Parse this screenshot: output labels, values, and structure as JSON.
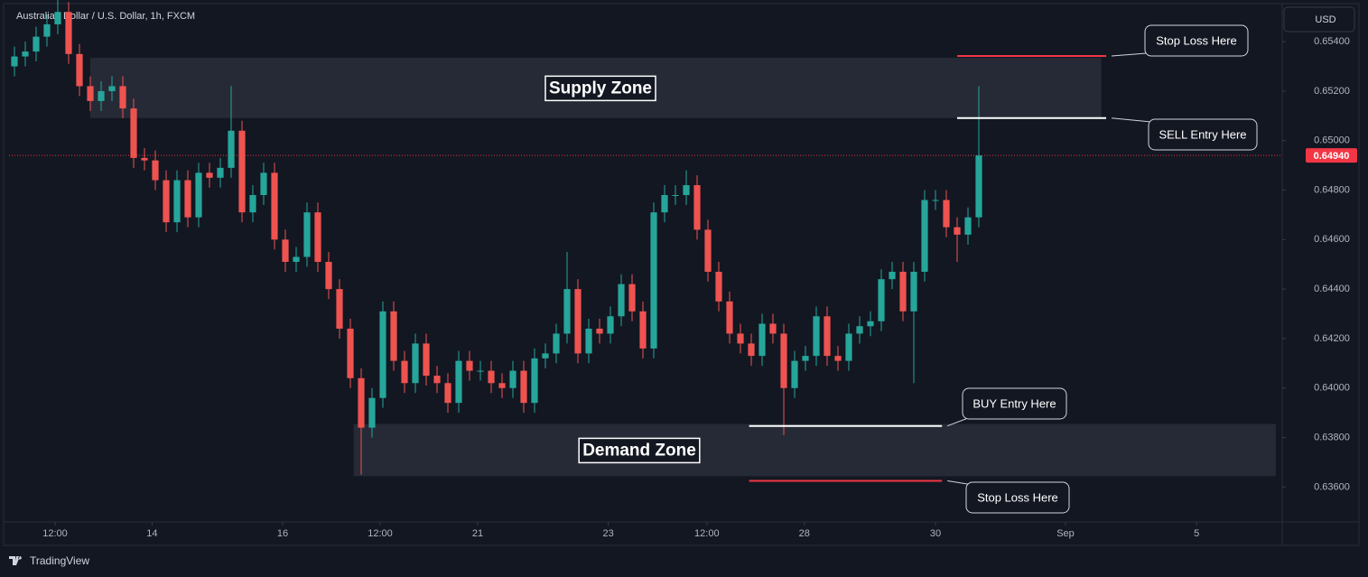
{
  "chart_data": {
    "type": "candlestick",
    "title": "Australian Dollar / U.S. Dollar, 1h, FXCM",
    "currency_button": "USD",
    "brand": "TradingView",
    "ylim": [
      0.6347,
      0.6555
    ],
    "xlim": [
      0,
      117.5
    ],
    "grid": false,
    "yticks": [
      {
        "value": 0.654,
        "label": "0.65400"
      },
      {
        "value": 0.652,
        "label": "0.65200"
      },
      {
        "value": 0.65,
        "label": "0.65000"
      },
      {
        "value": 0.648,
        "label": "0.64800"
      },
      {
        "value": 0.646,
        "label": "0.64600"
      },
      {
        "value": 0.644,
        "label": "0.64400"
      },
      {
        "value": 0.642,
        "label": "0.64200"
      },
      {
        "value": 0.64,
        "label": "0.64000"
      },
      {
        "value": 0.638,
        "label": "0.63800"
      },
      {
        "value": 0.636,
        "label": "0.63600"
      }
    ],
    "xticks": [
      {
        "value": 4.25,
        "label": "12:00"
      },
      {
        "value": 13.2,
        "label": "14"
      },
      {
        "value": 25.25,
        "label": "16"
      },
      {
        "value": 34.25,
        "label": "12:00"
      },
      {
        "value": 43.25,
        "label": "21"
      },
      {
        "value": 55.3,
        "label": "23"
      },
      {
        "value": 64.4,
        "label": "12:00"
      },
      {
        "value": 73.4,
        "label": "28"
      },
      {
        "value": 85.5,
        "label": "30"
      },
      {
        "value": 97.5,
        "label": "Sep"
      },
      {
        "value": 109.6,
        "label": "5"
      }
    ],
    "candles": {
      "up_color": "#26a69a",
      "down_color": "#ef5350",
      "x": [
        0.5,
        1.5,
        2.5,
        3.5,
        4.5,
        5.5,
        6.5,
        7.5,
        8.5,
        9.5,
        10.5,
        11.5,
        12.5,
        13.5,
        14.5,
        15.5,
        16.5,
        17.5,
        18.5,
        19.5,
        20.5,
        21.5,
        22.5,
        23.5,
        24.5,
        25.5,
        26.5,
        27.5,
        28.5,
        29.5,
        30.5,
        31.5,
        32.5,
        33.5,
        34.5,
        35.5,
        36.5,
        37.5,
        38.5,
        39.5,
        40.5,
        41.5,
        42.5,
        43.5,
        44.5,
        45.5,
        46.5,
        47.5,
        48.5,
        49.5,
        50.5,
        51.5,
        52.5,
        53.5,
        54.5,
        55.5,
        56.5,
        57.5,
        58.5,
        59.5,
        60.5,
        61.5,
        62.5,
        63.5,
        64.5,
        65.5,
        66.5,
        67.5,
        68.5,
        69.5,
        70.5,
        71.5,
        72.5,
        73.5,
        74.5,
        75.5,
        76.5,
        77.5,
        78.5,
        79.5,
        80.5,
        81.5,
        82.5,
        83.5,
        84.5,
        85.5,
        86.5,
        87.5,
        88.5,
        89.5
      ],
      "open": [
        0.653,
        0.6534,
        0.6536,
        0.6542,
        0.6547,
        0.6552,
        0.6535,
        0.6522,
        0.6516,
        0.652,
        0.6522,
        0.6513,
        0.6493,
        0.6492,
        0.6484,
        0.6467,
        0.6484,
        0.6469,
        0.6487,
        0.6485,
        0.6489,
        0.6504,
        0.6471,
        0.6478,
        0.6487,
        0.646,
        0.6451,
        0.6453,
        0.6471,
        0.6451,
        0.644,
        0.6424,
        0.6404,
        0.6384,
        0.6396,
        0.6431,
        0.6411,
        0.6402,
        0.6418,
        0.6405,
        0.6402,
        0.6394,
        0.6411,
        0.6407,
        0.6407,
        0.6402,
        0.64,
        0.6407,
        0.6394,
        0.6412,
        0.6414,
        0.6422,
        0.644,
        0.6414,
        0.6424,
        0.6422,
        0.6429,
        0.6442,
        0.6431,
        0.6416,
        0.6471,
        0.6478,
        0.6478,
        0.6482,
        0.6464,
        0.6447,
        0.6435,
        0.6422,
        0.6418,
        0.6413,
        0.6426,
        0.6422,
        0.64,
        0.6411,
        0.6413,
        0.6429,
        0.6413,
        0.6411,
        0.6422,
        0.6425,
        0.6427,
        0.6444,
        0.6447,
        0.6431,
        0.6447,
        0.6476,
        0.6476,
        0.6465,
        0.6462,
        0.6469
      ],
      "high": [
        0.6538,
        0.654,
        0.6546,
        0.6551,
        0.6563,
        0.6556,
        0.6539,
        0.6526,
        0.6524,
        0.6526,
        0.6526,
        0.6517,
        0.6497,
        0.6496,
        0.6488,
        0.6488,
        0.6488,
        0.6491,
        0.6491,
        0.6493,
        0.6522,
        0.6508,
        0.6482,
        0.6491,
        0.6491,
        0.6464,
        0.6457,
        0.6475,
        0.6475,
        0.6455,
        0.6444,
        0.6428,
        0.6408,
        0.64,
        0.6435,
        0.6435,
        0.6415,
        0.6422,
        0.6422,
        0.6409,
        0.6406,
        0.6415,
        0.6415,
        0.6411,
        0.6411,
        0.6406,
        0.6411,
        0.6411,
        0.6416,
        0.6418,
        0.6426,
        0.6455,
        0.6444,
        0.6428,
        0.6428,
        0.6433,
        0.6446,
        0.6446,
        0.6435,
        0.6475,
        0.6482,
        0.6482,
        0.6488,
        0.6486,
        0.6468,
        0.6451,
        0.6439,
        0.6426,
        0.6422,
        0.643,
        0.643,
        0.6426,
        0.6415,
        0.6417,
        0.6433,
        0.6433,
        0.6417,
        0.6426,
        0.6429,
        0.6431,
        0.6448,
        0.6451,
        0.6451,
        0.6451,
        0.648,
        0.648,
        0.648,
        0.6469,
        0.6473,
        0.6522
      ],
      "low": [
        0.6526,
        0.653,
        0.6532,
        0.6538,
        0.6543,
        0.6531,
        0.6518,
        0.6512,
        0.6512,
        0.6516,
        0.6509,
        0.6489,
        0.6488,
        0.648,
        0.6463,
        0.6463,
        0.6465,
        0.6465,
        0.6481,
        0.6481,
        0.6485,
        0.6467,
        0.6467,
        0.6474,
        0.6456,
        0.6447,
        0.6447,
        0.6449,
        0.6447,
        0.6436,
        0.642,
        0.64,
        0.6365,
        0.638,
        0.6392,
        0.6407,
        0.6398,
        0.6398,
        0.6401,
        0.6398,
        0.639,
        0.639,
        0.6403,
        0.6403,
        0.6398,
        0.6396,
        0.6396,
        0.639,
        0.639,
        0.6408,
        0.641,
        0.6418,
        0.641,
        0.641,
        0.6418,
        0.6418,
        0.6425,
        0.6427,
        0.6412,
        0.6412,
        0.6467,
        0.6474,
        0.6474,
        0.646,
        0.6443,
        0.6431,
        0.6418,
        0.6414,
        0.6409,
        0.6409,
        0.6418,
        0.6381,
        0.6396,
        0.6407,
        0.6409,
        0.6409,
        0.6407,
        0.6407,
        0.6418,
        0.6421,
        0.6423,
        0.644,
        0.6427,
        0.6402,
        0.6443,
        0.6472,
        0.6461,
        0.6451,
        0.6458,
        0.6465
      ],
      "close": [
        0.6534,
        0.6536,
        0.6542,
        0.6547,
        0.6552,
        0.6535,
        0.6522,
        0.6516,
        0.652,
        0.6522,
        0.6513,
        0.6493,
        0.6492,
        0.6484,
        0.6467,
        0.6484,
        0.6469,
        0.6487,
        0.6485,
        0.6489,
        0.6504,
        0.6471,
        0.6478,
        0.6487,
        0.646,
        0.6451,
        0.6453,
        0.6471,
        0.6451,
        0.644,
        0.6424,
        0.6404,
        0.6384,
        0.6396,
        0.6431,
        0.6411,
        0.6402,
        0.6418,
        0.6405,
        0.6402,
        0.6394,
        0.6411,
        0.6407,
        0.6407,
        0.6402,
        0.64,
        0.6407,
        0.6394,
        0.6412,
        0.6414,
        0.6422,
        0.644,
        0.6414,
        0.6424,
        0.6422,
        0.6429,
        0.6442,
        0.6431,
        0.6416,
        0.6471,
        0.6478,
        0.6478,
        0.6482,
        0.6464,
        0.6447,
        0.6435,
        0.6422,
        0.6418,
        0.6413,
        0.6426,
        0.6422,
        0.64,
        0.6411,
        0.6413,
        0.6429,
        0.6413,
        0.6411,
        0.6422,
        0.6425,
        0.6427,
        0.6444,
        0.6447,
        0.6431,
        0.6447,
        0.6476,
        0.6476,
        0.6465,
        0.6462,
        0.6469,
        0.6494
      ]
    },
    "last_price": {
      "value": 0.6494,
      "label": "0.64940",
      "color": "#f23645"
    },
    "zones": [
      {
        "label": "Supply Zone",
        "x": [
          7.5,
          100.8
        ],
        "y": [
          0.65091,
          0.65335
        ]
      },
      {
        "label": "Demand Zone",
        "x": [
          31.8,
          116.9
        ],
        "y": [
          0.63644,
          0.63855
        ]
      }
    ],
    "levels": [
      {
        "label": "Stop Loss Here",
        "price": 0.65342,
        "x": [
          87.5,
          101.25
        ],
        "color": "#f23645"
      },
      {
        "label": "SELL Entry Here",
        "price": 0.65091,
        "x": [
          87.5,
          101.25
        ],
        "color": "#ffffff"
      },
      {
        "label": "BUY Entry Here",
        "price": 0.63847,
        "x": [
          68.3,
          86.1
        ],
        "color": "#ffffff"
      },
      {
        "label": "Stop Loss Here",
        "price": 0.63625,
        "x": [
          68.3,
          86.1
        ],
        "color": "#f23645"
      }
    ]
  }
}
